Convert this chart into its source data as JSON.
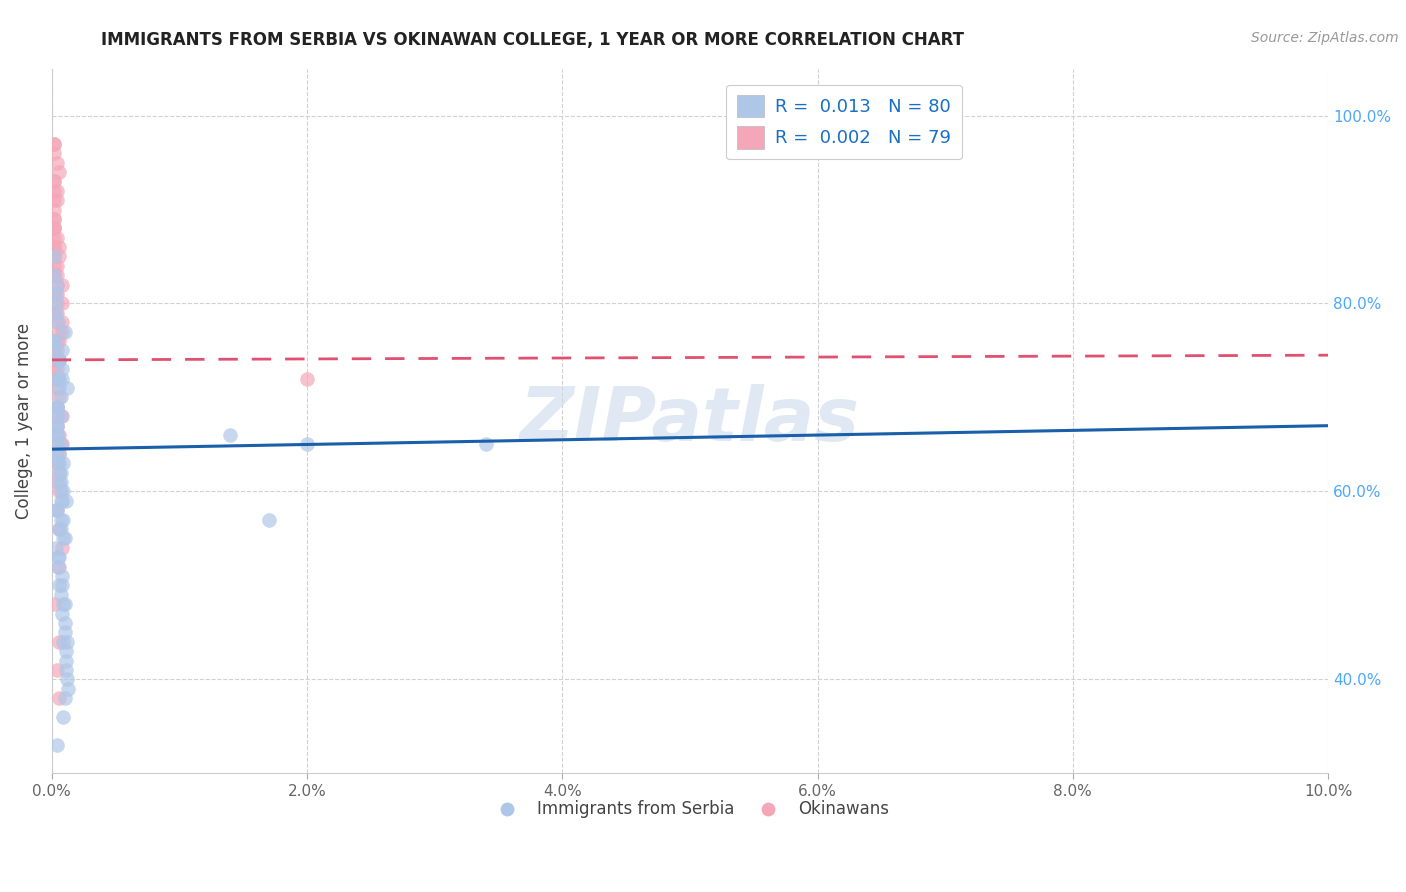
{
  "title": "IMMIGRANTS FROM SERBIA VS OKINAWAN COLLEGE, 1 YEAR OR MORE CORRELATION CHART",
  "source_text": "Source: ZipAtlas.com",
  "ylabel": "College, 1 year or more",
  "legend_label_blue": "Immigrants from Serbia",
  "legend_label_pink": "Okinawans",
  "xlim": [
    0.0,
    0.1
  ],
  "ylim": [
    0.3,
    1.05
  ],
  "yticks": [
    0.4,
    0.6,
    0.8,
    1.0
  ],
  "ytick_labels": [
    "40.0%",
    "60.0%",
    "80.0%",
    "100.0%"
  ],
  "xticks": [
    0.0,
    0.02,
    0.04,
    0.06,
    0.08,
    0.1
  ],
  "xtick_labels": [
    "0.0%",
    "2.0%",
    "4.0%",
    "6.0%",
    "8.0%",
    "10.0%"
  ],
  "R_blue": 0.013,
  "N_blue": 80,
  "R_pink": 0.002,
  "N_pink": 79,
  "color_blue": "#aec6e8",
  "color_pink": "#f4a7b9",
  "line_color_blue": "#1a5faa",
  "line_color_pink": "#e05070",
  "grid_color": "#cccccc",
  "watermark": "ZIPatlas",
  "blue_line_y0": 0.645,
  "blue_line_y1": 0.67,
  "pink_line_y0": 0.74,
  "pink_line_y1": 0.745,
  "blue_scatter_x": [
    0.0003,
    0.0008,
    0.0005,
    0.001,
    0.0007,
    0.0012,
    0.0004,
    0.0009,
    0.0006,
    0.0011,
    0.0002,
    0.0007,
    0.0009,
    0.0005,
    0.0003,
    0.0008,
    0.0006,
    0.0004,
    0.001,
    0.0007,
    0.0005,
    0.0009,
    0.0003,
    0.0006,
    0.0008,
    0.0004,
    0.0012,
    0.0007,
    0.0005,
    0.0003,
    0.0006,
    0.001,
    0.0002,
    0.0008,
    0.0011,
    0.0004,
    0.0007,
    0.0005,
    0.0003,
    0.0009,
    0.0011,
    0.0004,
    0.0006,
    0.0008,
    0.0002,
    0.0007,
    0.0013,
    0.0005,
    0.001,
    0.0006,
    0.0009,
    0.0003,
    0.0011,
    0.0007,
    0.0004,
    0.0006,
    0.0012,
    0.0002,
    0.0008,
    0.0007,
    0.0004,
    0.001,
    0.0006,
    0.014,
    0.0003,
    0.0007,
    0.0009,
    0.0005,
    0.0006,
    0.001,
    0.0002,
    0.0007,
    0.0004,
    0.02,
    0.0006,
    0.0009,
    0.034,
    0.0004,
    0.017,
    0.0008
  ],
  "blue_scatter_y": [
    0.65,
    0.72,
    0.78,
    0.55,
    0.68,
    0.71,
    0.82,
    0.6,
    0.64,
    0.59,
    0.75,
    0.7,
    0.63,
    0.66,
    0.58,
    0.73,
    0.61,
    0.67,
    0.77,
    0.62,
    0.52,
    0.48,
    0.54,
    0.56,
    0.51,
    0.69,
    0.44,
    0.57,
    0.53,
    0.64,
    0.5,
    0.46,
    0.76,
    0.59,
    0.43,
    0.66,
    0.49,
    0.72,
    0.8,
    0.55,
    0.41,
    0.68,
    0.74,
    0.47,
    0.83,
    0.6,
    0.39,
    0.63,
    0.45,
    0.71,
    0.36,
    0.79,
    0.42,
    0.65,
    0.58,
    0.53,
    0.4,
    0.76,
    0.5,
    0.61,
    0.69,
    0.38,
    0.74,
    0.66,
    0.81,
    0.56,
    0.44,
    0.72,
    0.62,
    0.48,
    0.85,
    0.59,
    0.67,
    0.65,
    0.63,
    0.57,
    0.65,
    0.33,
    0.57,
    0.75
  ],
  "pink_scatter_x": [
    0.0002,
    0.0004,
    0.0006,
    0.0002,
    0.0008,
    0.0004,
    0.0002,
    0.0006,
    0.0004,
    0.0002,
    0.0008,
    0.0004,
    0.0002,
    0.0006,
    0.0002,
    0.0004,
    0.0002,
    0.0006,
    0.0008,
    0.0004,
    0.0002,
    0.0004,
    0.0006,
    0.0002,
    0.0004,
    0.0002,
    0.0006,
    0.0004,
    0.0002,
    0.0008,
    0.0004,
    0.0002,
    0.0006,
    0.0004,
    0.0002,
    0.0004,
    0.0006,
    0.0002,
    0.0004,
    0.0002,
    0.0006,
    0.0004,
    0.0002,
    0.0008,
    0.0004,
    0.0002,
    0.0006,
    0.0004,
    0.0002,
    0.0004,
    0.0002,
    0.0006,
    0.0002,
    0.0004,
    0.0008,
    0.0002,
    0.0004,
    0.0006,
    0.0002,
    0.0004,
    0.0002,
    0.0006,
    0.0004,
    0.0002,
    0.0008,
    0.0004,
    0.0002,
    0.0006,
    0.0002,
    0.0004,
    0.0002,
    0.0004,
    0.0006,
    0.0002,
    0.0004,
    0.0002,
    0.02,
    0.0006,
    0.0004
  ],
  "pink_scatter_y": [
    0.97,
    0.91,
    0.85,
    0.88,
    0.82,
    0.95,
    0.79,
    0.86,
    0.92,
    0.75,
    0.78,
    0.83,
    0.89,
    0.76,
    0.93,
    0.81,
    0.87,
    0.74,
    0.8,
    0.84,
    0.9,
    0.72,
    0.77,
    0.96,
    0.73,
    0.86,
    0.7,
    0.82,
    0.91,
    0.68,
    0.79,
    0.85,
    0.94,
    0.69,
    0.88,
    0.75,
    0.66,
    0.92,
    0.71,
    0.83,
    0.64,
    0.78,
    0.97,
    0.65,
    0.87,
    0.73,
    0.62,
    0.8,
    0.89,
    0.67,
    0.76,
    0.6,
    0.84,
    0.63,
    0.77,
    0.93,
    0.58,
    0.72,
    0.86,
    0.61,
    0.81,
    0.56,
    0.74,
    0.88,
    0.54,
    0.69,
    0.83,
    0.52,
    0.79,
    0.65,
    0.48,
    0.76,
    0.44,
    0.81,
    0.41,
    0.85,
    0.72,
    0.38,
    0.68
  ]
}
